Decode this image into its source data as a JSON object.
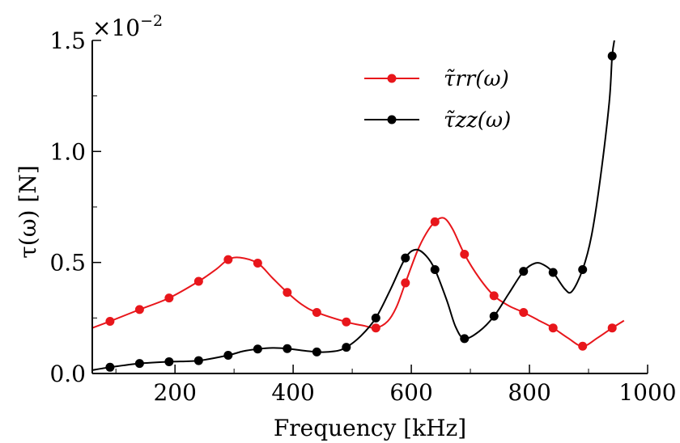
{
  "chart_data": {
    "type": "line",
    "xlabel": "Frequency [kHz]",
    "ylabel": "τ(ω) [N]",
    "xlim": [
      60,
      1000
    ],
    "ylim": [
      0,
      1.5
    ],
    "y_multiplier": "×10",
    "y_multiplier_exp": "−2",
    "x_ticks": [
      "200",
      "400",
      "600",
      "800",
      "1000"
    ],
    "x_tick_values": [
      200,
      400,
      600,
      800,
      1000
    ],
    "y_ticks": [
      "0.0",
      "0.5",
      "1.0",
      "1.5"
    ],
    "y_tick_values": [
      0,
      0.5,
      1.0,
      1.5
    ],
    "legend_position": "top-right",
    "series": [
      {
        "name": "τ̃rr(ω)",
        "color": "#e8161b",
        "markers": [
          [
            90,
            0.235
          ],
          [
            140,
            0.288
          ],
          [
            190,
            0.34
          ],
          [
            240,
            0.415
          ],
          [
            290,
            0.513
          ],
          [
            340,
            0.497
          ],
          [
            390,
            0.365
          ],
          [
            440,
            0.275
          ],
          [
            490,
            0.232
          ],
          [
            540,
            0.205
          ],
          [
            590,
            0.408
          ],
          [
            640,
            0.683
          ],
          [
            690,
            0.537
          ],
          [
            740,
            0.35
          ],
          [
            790,
            0.275
          ],
          [
            840,
            0.205
          ],
          [
            890,
            0.123
          ],
          [
            940,
            0.205
          ]
        ],
        "curve": [
          [
            60,
            0.205
          ],
          [
            90,
            0.235
          ],
          [
            140,
            0.288
          ],
          [
            190,
            0.34
          ],
          [
            240,
            0.415
          ],
          [
            270,
            0.47
          ],
          [
            290,
            0.513
          ],
          [
            310,
            0.522
          ],
          [
            340,
            0.497
          ],
          [
            365,
            0.43
          ],
          [
            390,
            0.365
          ],
          [
            415,
            0.31
          ],
          [
            440,
            0.275
          ],
          [
            490,
            0.232
          ],
          [
            520,
            0.215
          ],
          [
            540,
            0.205
          ],
          [
            560,
            0.235
          ],
          [
            575,
            0.3
          ],
          [
            590,
            0.408
          ],
          [
            610,
            0.55
          ],
          [
            625,
            0.63
          ],
          [
            640,
            0.683
          ],
          [
            655,
            0.7
          ],
          [
            670,
            0.65
          ],
          [
            690,
            0.537
          ],
          [
            715,
            0.43
          ],
          [
            740,
            0.35
          ],
          [
            765,
            0.305
          ],
          [
            790,
            0.275
          ],
          [
            815,
            0.24
          ],
          [
            840,
            0.205
          ],
          [
            865,
            0.16
          ],
          [
            890,
            0.123
          ],
          [
            915,
            0.16
          ],
          [
            940,
            0.205
          ],
          [
            960,
            0.238
          ]
        ]
      },
      {
        "name": "τ̃zz(ω)",
        "color": "#000000",
        "markers": [
          [
            90,
            0.028
          ],
          [
            140,
            0.045
          ],
          [
            190,
            0.053
          ],
          [
            240,
            0.058
          ],
          [
            290,
            0.082
          ],
          [
            340,
            0.11
          ],
          [
            390,
            0.112
          ],
          [
            440,
            0.097
          ],
          [
            490,
            0.118
          ],
          [
            540,
            0.25
          ],
          [
            590,
            0.52
          ],
          [
            640,
            0.468
          ],
          [
            690,
            0.157
          ],
          [
            740,
            0.258
          ],
          [
            790,
            0.46
          ],
          [
            840,
            0.455
          ],
          [
            890,
            0.468
          ],
          [
            940,
            1.43
          ]
        ],
        "curve": [
          [
            60,
            0.015
          ],
          [
            90,
            0.028
          ],
          [
            140,
            0.045
          ],
          [
            190,
            0.053
          ],
          [
            240,
            0.058
          ],
          [
            290,
            0.082
          ],
          [
            315,
            0.1
          ],
          [
            340,
            0.11
          ],
          [
            365,
            0.115
          ],
          [
            390,
            0.112
          ],
          [
            440,
            0.097
          ],
          [
            470,
            0.1
          ],
          [
            490,
            0.118
          ],
          [
            515,
            0.17
          ],
          [
            540,
            0.25
          ],
          [
            565,
            0.38
          ],
          [
            590,
            0.52
          ],
          [
            608,
            0.558
          ],
          [
            625,
            0.53
          ],
          [
            640,
            0.468
          ],
          [
            660,
            0.33
          ],
          [
            675,
            0.21
          ],
          [
            690,
            0.157
          ],
          [
            715,
            0.19
          ],
          [
            740,
            0.258
          ],
          [
            765,
            0.36
          ],
          [
            790,
            0.46
          ],
          [
            810,
            0.497
          ],
          [
            825,
            0.488
          ],
          [
            840,
            0.455
          ],
          [
            860,
            0.38
          ],
          [
            872,
            0.37
          ],
          [
            890,
            0.468
          ],
          [
            905,
            0.62
          ],
          [
            920,
            0.88
          ],
          [
            935,
            1.22
          ],
          [
            940,
            1.43
          ],
          [
            945,
            1.52
          ]
        ]
      }
    ]
  }
}
